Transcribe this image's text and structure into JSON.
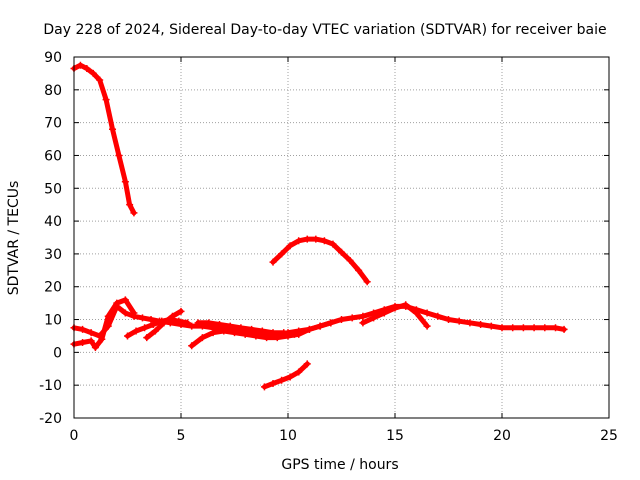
{
  "chart_data": {
    "type": "scatter",
    "title": "Day 228 of 2024, Sidereal Day-to-day VTEC variation (SDTVAR) for receiver baie",
    "xlabel": "GPS time / hours",
    "ylabel": "SDTVAR / TECUs",
    "xlim": [
      0,
      25
    ],
    "ylim": [
      -20,
      90
    ],
    "xticks": [
      0,
      5,
      10,
      15,
      20,
      25
    ],
    "yticks": [
      -20,
      -10,
      0,
      10,
      20,
      30,
      40,
      50,
      60,
      70,
      80,
      90
    ],
    "grid": true,
    "legend": "none",
    "colors": {
      "series": "#ff0000",
      "grid": "#a0a0a0",
      "axes": "#000000"
    },
    "series": [
      {
        "name": "arc-1-high",
        "x": [
          0.0,
          0.3,
          0.6,
          0.9,
          1.2,
          1.5,
          1.8,
          2.1,
          2.4,
          2.6,
          2.8
        ],
        "y": [
          86.5,
          87.5,
          86.5,
          85,
          83,
          77,
          68,
          60,
          52,
          45,
          42.5
        ]
      },
      {
        "name": "arc-2-mid",
        "x": [
          9.3,
          9.7,
          10.1,
          10.5,
          10.9,
          11.3,
          11.7,
          12.1,
          12.5,
          12.9,
          13.3,
          13.7
        ],
        "y": [
          27.5,
          30,
          32.5,
          34,
          34.5,
          34.5,
          34,
          33,
          30.5,
          28,
          25,
          21.5
        ]
      },
      {
        "name": "arc-3-neg",
        "x": [
          8.9,
          9.3,
          9.7,
          10.1,
          10.5,
          10.9
        ],
        "y": [
          -10.5,
          -9.5,
          -8.5,
          -7.5,
          -6,
          -3.5
        ]
      },
      {
        "name": "arc-4-low",
        "x": [
          0.0,
          0.4,
          0.8,
          1.2,
          1.6,
          2.0,
          2.4,
          2.8,
          3.2,
          3.6,
          4.0,
          4.5,
          5.0,
          5.5,
          6.0,
          6.5,
          7.0,
          7.5,
          8.0,
          8.5,
          9.0,
          9.5,
          10.0,
          10.5,
          11.0,
          11.5,
          12.0,
          12.5,
          13.0,
          13.5,
          14.0,
          14.5,
          15.0,
          15.5,
          16.0,
          16.5,
          17.0,
          17.5,
          18.0,
          18.5,
          19.0,
          19.5,
          20.0,
          20.5,
          21.0,
          21.5,
          22.0,
          22.5,
          22.9
        ],
        "y": [
          7.5,
          7,
          6,
          5,
          8,
          14,
          12,
          11,
          10.5,
          10,
          9.5,
          9,
          8.5,
          8,
          8,
          7.5,
          7.5,
          7,
          6.5,
          6,
          5.5,
          5.5,
          6,
          6.5,
          7,
          8,
          9,
          10,
          10.5,
          11,
          12,
          13,
          14,
          14,
          13,
          12,
          11,
          10,
          9.5,
          9,
          8.5,
          8,
          7.5,
          7.5,
          7.5,
          7.5,
          7.5,
          7.5,
          7
        ]
      },
      {
        "name": "arc-5-low",
        "x": [
          0.0,
          0.4,
          0.8,
          1.0,
          1.3,
          1.6,
          2.0,
          2.4,
          2.8
        ],
        "y": [
          2.5,
          3,
          3.5,
          1.5,
          4,
          11,
          15,
          16,
          12
        ]
      },
      {
        "name": "arc-6-low",
        "x": [
          2.5,
          2.9,
          3.3,
          3.7,
          4.1,
          4.5,
          4.9,
          5.3
        ],
        "y": [
          5,
          6.5,
          7.5,
          8.5,
          9.5,
          10,
          9.5,
          9
        ]
      },
      {
        "name": "arc-7-low",
        "x": [
          3.4,
          3.8,
          4.2,
          4.6,
          5.0
        ],
        "y": [
          4.5,
          6.5,
          9,
          11,
          12.5
        ]
      },
      {
        "name": "arc-8-low",
        "x": [
          5.5,
          6.0,
          6.5,
          7.0,
          7.5,
          8.0,
          8.5,
          9.0,
          9.5,
          10.0,
          10.5,
          11.0,
          11.5,
          12.0
        ],
        "y": [
          2,
          4.5,
          6,
          6.5,
          6,
          5.5,
          5,
          4.5,
          4.5,
          5,
          5.5,
          7,
          8,
          9
        ]
      },
      {
        "name": "arc-9-low",
        "x": [
          5.8,
          6.3,
          6.8,
          7.3,
          7.8,
          8.3,
          8.8,
          9.3,
          9.8,
          10.3
        ],
        "y": [
          9,
          9,
          8.5,
          8,
          7.5,
          7,
          6.5,
          6,
          6,
          5.5
        ]
      },
      {
        "name": "arc-10-low",
        "x": [
          13.5,
          14.0,
          14.5,
          15.0,
          15.5,
          16.0,
          16.5
        ],
        "y": [
          9,
          10.5,
          12,
          13.5,
          14.5,
          12,
          8
        ]
      }
    ]
  }
}
